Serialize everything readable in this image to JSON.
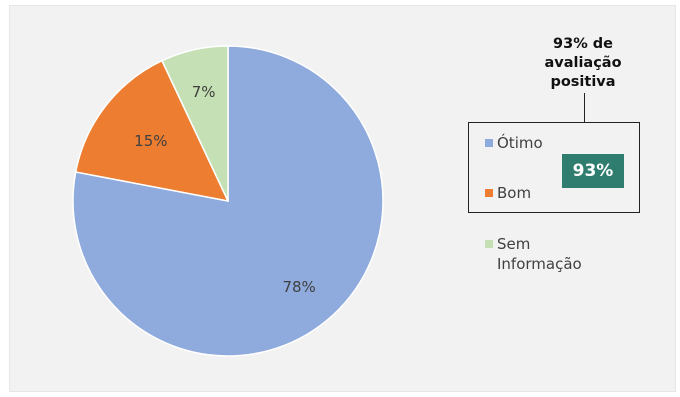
{
  "chart_data": {
    "type": "pie",
    "title": "",
    "categories": [
      "Ótimo",
      "Bom",
      "Sem Informação"
    ],
    "values": [
      78,
      15,
      7
    ],
    "labels": [
      "78%",
      "15%",
      "7%"
    ],
    "colors": [
      "#8faadc",
      "#ed7d31",
      "#c5e0b4"
    ],
    "legend_position": "right"
  },
  "legend": {
    "items": [
      {
        "label": "Ótimo",
        "color": "#8faadc"
      },
      {
        "label": "Bom",
        "color": "#ed7d31"
      },
      {
        "label": "Sem Informação",
        "color": "#c5e0b4"
      }
    ]
  },
  "callout": {
    "title": "93% de avaliação positiva",
    "badge": "93%",
    "badge_color": "#2f7d6e"
  }
}
